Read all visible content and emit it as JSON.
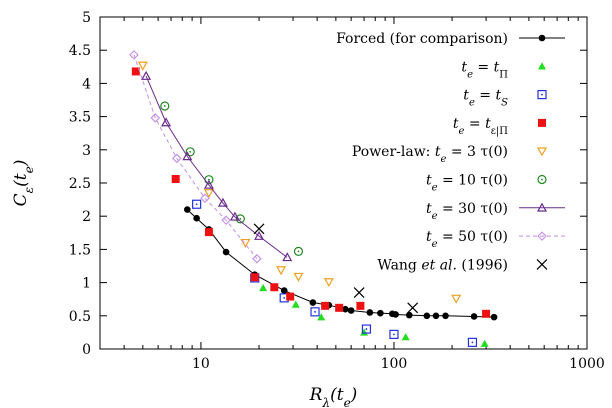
{
  "chart_data": {
    "type": "scatter",
    "xlabel": "R_λ(t_e)",
    "ylabel": "C_ε(t_e)",
    "xscale": "log",
    "xlim": [
      3,
      1000
    ],
    "ylim": [
      0,
      5
    ],
    "xticks": [
      10,
      100,
      1000
    ],
    "xtick_labels": [
      "10",
      "100",
      "1000"
    ],
    "yticks": [
      0,
      0.5,
      1,
      1.5,
      2,
      2.5,
      3,
      3.5,
      4,
      4.5,
      5
    ],
    "ytick_labels": [
      "0",
      "0.5",
      "1",
      "1.5",
      "2",
      "2.5",
      "3",
      "3.5",
      "4",
      "4.5",
      "5"
    ],
    "grid": false,
    "legend_position": "top-right",
    "series": [
      {
        "name": "Forced (for comparison)",
        "marker": "filled-circle",
        "line": "solid",
        "color": "#000000",
        "points": [
          [
            8.5,
            2.1
          ],
          [
            9.5,
            1.97
          ],
          [
            11,
            1.8
          ],
          [
            13.5,
            1.46
          ],
          [
            19,
            1.12
          ],
          [
            27,
            0.88
          ],
          [
            38,
            0.7
          ],
          [
            46,
            0.66
          ],
          [
            56,
            0.6
          ],
          [
            60,
            0.58
          ],
          [
            75,
            0.55
          ],
          [
            85,
            0.54
          ],
          [
            98,
            0.53
          ],
          [
            102,
            0.52
          ],
          [
            120,
            0.51
          ],
          [
            148,
            0.5
          ],
          [
            165,
            0.5
          ],
          [
            185,
            0.5
          ],
          [
            260,
            0.49
          ],
          [
            330,
            0.48
          ]
        ]
      },
      {
        "name": "t_e = t_Π",
        "marker": "filled-triangle",
        "line": "none",
        "color": "#22dd22",
        "points": [
          [
            21,
            0.92
          ],
          [
            31,
            0.67
          ],
          [
            42,
            0.48
          ],
          [
            70,
            0.25
          ],
          [
            115,
            0.18
          ],
          [
            295,
            0.08
          ]
        ]
      },
      {
        "name": "t_e = t_S",
        "marker": "dotted-square",
        "line": "none",
        "color": "#2233dd",
        "points": [
          [
            9.5,
            2.18
          ],
          [
            19,
            1.07
          ],
          [
            27,
            0.77
          ],
          [
            39,
            0.56
          ],
          [
            72,
            0.3
          ],
          [
            100,
            0.22
          ],
          [
            255,
            0.1
          ]
        ]
      },
      {
        "name": "t_e = t_ε|Π",
        "marker": "filled-square",
        "line": "none",
        "color": "#ee1111",
        "points": [
          [
            4.6,
            4.18
          ],
          [
            7.4,
            2.56
          ],
          [
            11,
            1.76
          ],
          [
            19,
            1.08
          ],
          [
            24,
            0.93
          ],
          [
            29,
            0.79
          ],
          [
            44,
            0.65
          ],
          [
            52,
            0.62
          ],
          [
            67,
            0.65
          ],
          [
            300,
            0.53
          ]
        ]
      },
      {
        "name": "Power-law: t_e = 3 τ(0)",
        "marker": "open-triangle-down",
        "line": "none",
        "color": "#f0a020",
        "points": [
          [
            5,
            4.27
          ],
          [
            11,
            2.35
          ],
          [
            17,
            1.6
          ],
          [
            26,
            1.19
          ],
          [
            32,
            1.09
          ],
          [
            46,
            1.01
          ],
          [
            210,
            0.76
          ]
        ]
      },
      {
        "name": "t_e = 10 τ(0)",
        "marker": "dotted-circle",
        "line": "none",
        "color": "#228822",
        "points": [
          [
            6.5,
            3.66
          ],
          [
            8.8,
            2.97
          ],
          [
            11,
            2.55
          ],
          [
            16,
            1.96
          ],
          [
            32,
            1.47
          ]
        ]
      },
      {
        "name": "t_e = 30 τ(0)",
        "marker": "open-triangle",
        "line": "solid",
        "color": "#6a2a8a",
        "points": [
          [
            5.2,
            4.11
          ],
          [
            6.6,
            3.41
          ],
          [
            8.5,
            2.9
          ],
          [
            11,
            2.47
          ],
          [
            13,
            2.2
          ],
          [
            15,
            1.99
          ],
          [
            20,
            1.7
          ],
          [
            28,
            1.38
          ]
        ]
      },
      {
        "name": "t_e = 50 τ(0)",
        "marker": "open-diamond",
        "line": "dashed",
        "color": "#c28ee6",
        "points": [
          [
            4.5,
            4.43
          ],
          [
            5.8,
            3.48
          ],
          [
            7.5,
            2.87
          ],
          [
            10.5,
            2.27
          ],
          [
            13.5,
            1.94
          ],
          [
            19.5,
            1.36
          ]
        ]
      },
      {
        "name": "Wang et al. (1996)",
        "marker": "cross",
        "line": "none",
        "color": "#000000",
        "points": [
          [
            20,
            1.81
          ],
          [
            66,
            0.85
          ],
          [
            125,
            0.62
          ]
        ]
      }
    ]
  }
}
